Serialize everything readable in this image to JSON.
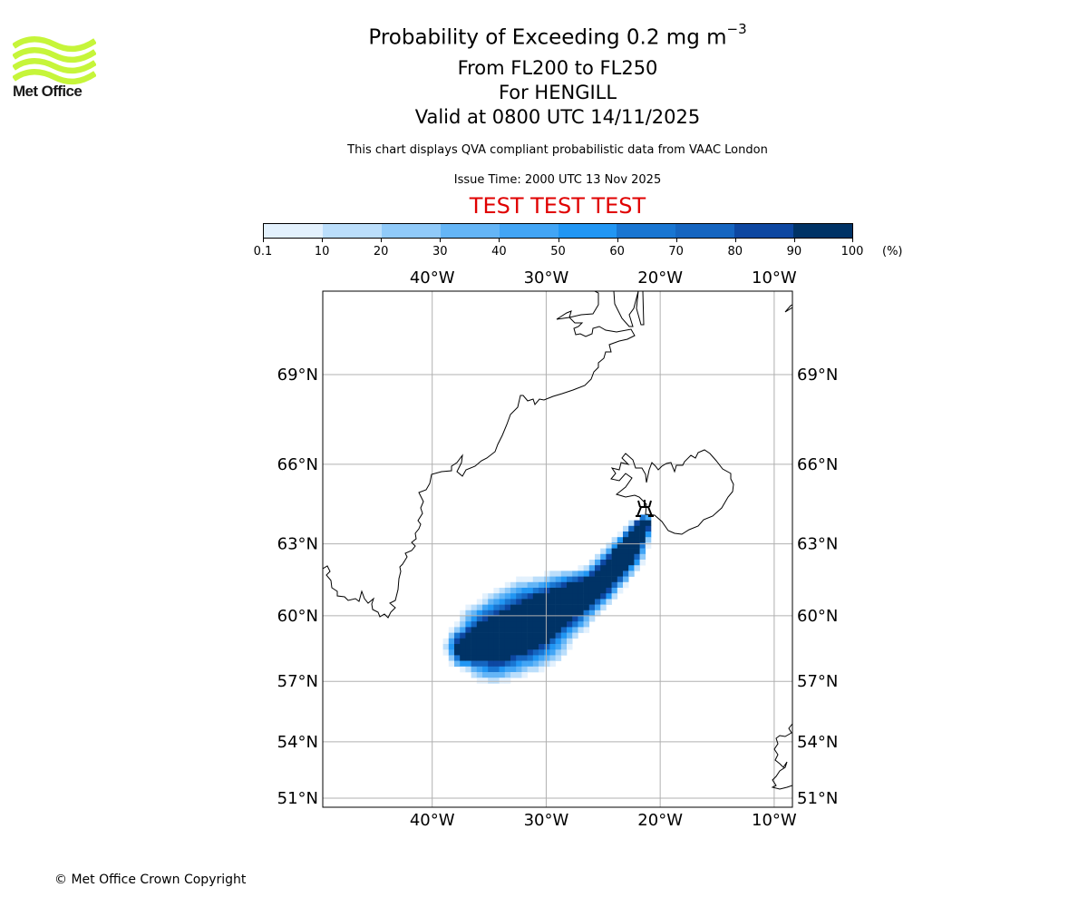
{
  "logo": {
    "text": "Met Office",
    "wave_color": "#c6f53a",
    "icon": "met-office-waves-icon"
  },
  "titles": {
    "main_prefix": "Probability of Exceeding 0.2 mg m",
    "main_superscript": "−3",
    "flight_levels": "From FL200 to FL250",
    "volcano": "For HENGILL",
    "valid": "Valid at 0800 UTC 14/11/2025",
    "subtitle": "This chart displays QVA compliant probabilistic data from VAAC London",
    "issue_time": "Issue Time: 2000 UTC 13 Nov 2025",
    "test_banner": "TEST TEST TEST",
    "test_banner_color": "#e00000"
  },
  "colorbar": {
    "unit": "(%)",
    "tick_labels": [
      "0.1",
      "10",
      "20",
      "30",
      "40",
      "50",
      "60",
      "70",
      "80",
      "90",
      "100"
    ],
    "colors": [
      "#e3f1fd",
      "#bbdefb",
      "#90caf9",
      "#64b5f6",
      "#42a5f5",
      "#2196f3",
      "#1976d2",
      "#1565c0",
      "#0d47a1",
      "#003366"
    ]
  },
  "chart_data": {
    "type": "heatmap",
    "title": "Probability of Exceeding 0.2 mg m^-3, From FL200 to FL250, For HENGILL, Valid at 0800 UTC 14/11/2025",
    "value_unit": "%",
    "bins": [
      0.1,
      10,
      20,
      30,
      40,
      50,
      60,
      70,
      80,
      90,
      100
    ],
    "projection": "Mercator",
    "lon_range": [
      -49.6,
      -8.4
    ],
    "lat_range": [
      50.7,
      71.8
    ],
    "x_ticks": [
      "40°W",
      "30°W",
      "20°W",
      "10°W"
    ],
    "x_tick_values": [
      -40,
      -30,
      -20,
      -10
    ],
    "y_ticks": [
      "69°N",
      "66°N",
      "63°N",
      "60°N",
      "57°N",
      "54°N",
      "51°N"
    ],
    "y_tick_values": [
      69,
      66,
      63,
      60,
      57,
      54,
      51
    ],
    "grid": true,
    "volcano": {
      "name": "HENGILL",
      "lon": -21.3,
      "lat": 64.1,
      "marker": "volcano-symbol"
    },
    "plume_centerline": [
      {
        "lon": -21.4,
        "lat": 63.8,
        "core_halfwidth_deg": 0.5
      },
      {
        "lon": -23.0,
        "lat": 62.6,
        "core_halfwidth_deg": 0.9
      },
      {
        "lon": -25.5,
        "lat": 61.3,
        "core_halfwidth_deg": 1.0
      },
      {
        "lon": -28.5,
        "lat": 60.5,
        "core_halfwidth_deg": 1.6
      },
      {
        "lon": -31.5,
        "lat": 59.6,
        "core_halfwidth_deg": 2.2
      },
      {
        "lon": -34.5,
        "lat": 58.9,
        "core_halfwidth_deg": 2.0
      },
      {
        "lon": -36.8,
        "lat": 58.6,
        "core_halfwidth_deg": 1.3
      }
    ],
    "plume_peak_probability": 100,
    "plume_edge_probability": 0.1
  },
  "footer": {
    "copyright": "© Met Office Crown Copyright"
  }
}
